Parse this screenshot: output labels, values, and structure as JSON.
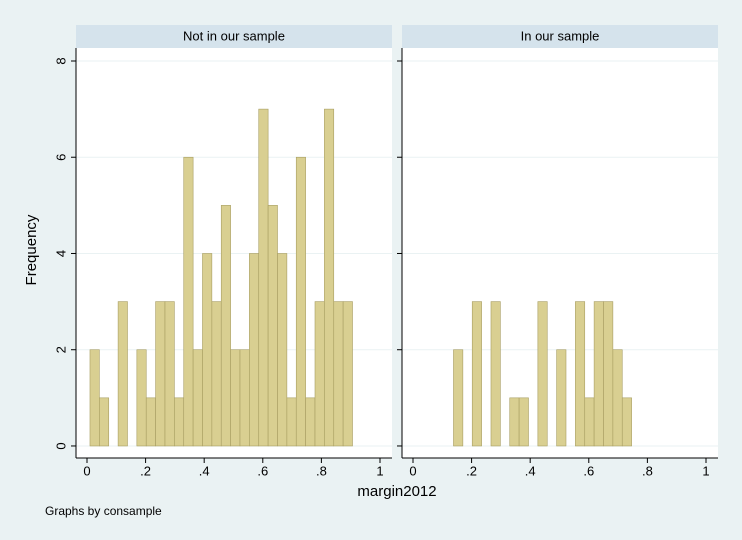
{
  "chart_data": {
    "type": "histogram",
    "x_label": "margin2012",
    "y_label": "Frequency",
    "note": "Graphs by consample",
    "color": "#d9cf91",
    "edge_color": "#a89e62",
    "grid": true,
    "xlim": [
      -0.0375,
      1.041
    ],
    "ylim": [
      -0.25,
      8.27
    ],
    "xticks": [
      0,
      {
        "value": 0.2,
        "label": ".2"
      },
      {
        "value": 0.4,
        "label": ".4"
      },
      {
        "value": 0.6,
        "label": ".6"
      },
      {
        "value": 0.8,
        "label": ".8"
      },
      1
    ],
    "yticks": [
      0,
      2,
      4,
      6,
      8
    ],
    "bins": [
      0.0102,
      0.0422,
      0.0742,
      0.1062,
      0.1382,
      0.1702,
      0.2022,
      0.2342,
      0.2662,
      0.2982,
      0.3302,
      0.3622,
      0.3942,
      0.4262,
      0.4582,
      0.4902,
      0.5222,
      0.5542,
      0.5862,
      0.6182,
      0.6502,
      0.6822,
      0.7142,
      0.7462,
      0.7782,
      0.8102,
      0.8422,
      0.8742,
      0.9062
    ],
    "panels": [
      {
        "title": "Not in our sample",
        "counts": [
          2,
          1,
          0,
          3,
          0,
          2,
          1,
          3,
          3,
          1,
          6,
          2,
          4,
          3,
          5,
          2,
          2,
          4,
          7,
          5,
          4,
          1,
          6,
          1,
          3,
          7,
          3,
          3
        ]
      },
      {
        "title": "In our sample",
        "counts": [
          0,
          0,
          0,
          0,
          2,
          0,
          3,
          0,
          3,
          0,
          1,
          1,
          0,
          3,
          0,
          2,
          0,
          3,
          1,
          3,
          3,
          2,
          1,
          0,
          0,
          0,
          0,
          0
        ]
      }
    ]
  }
}
